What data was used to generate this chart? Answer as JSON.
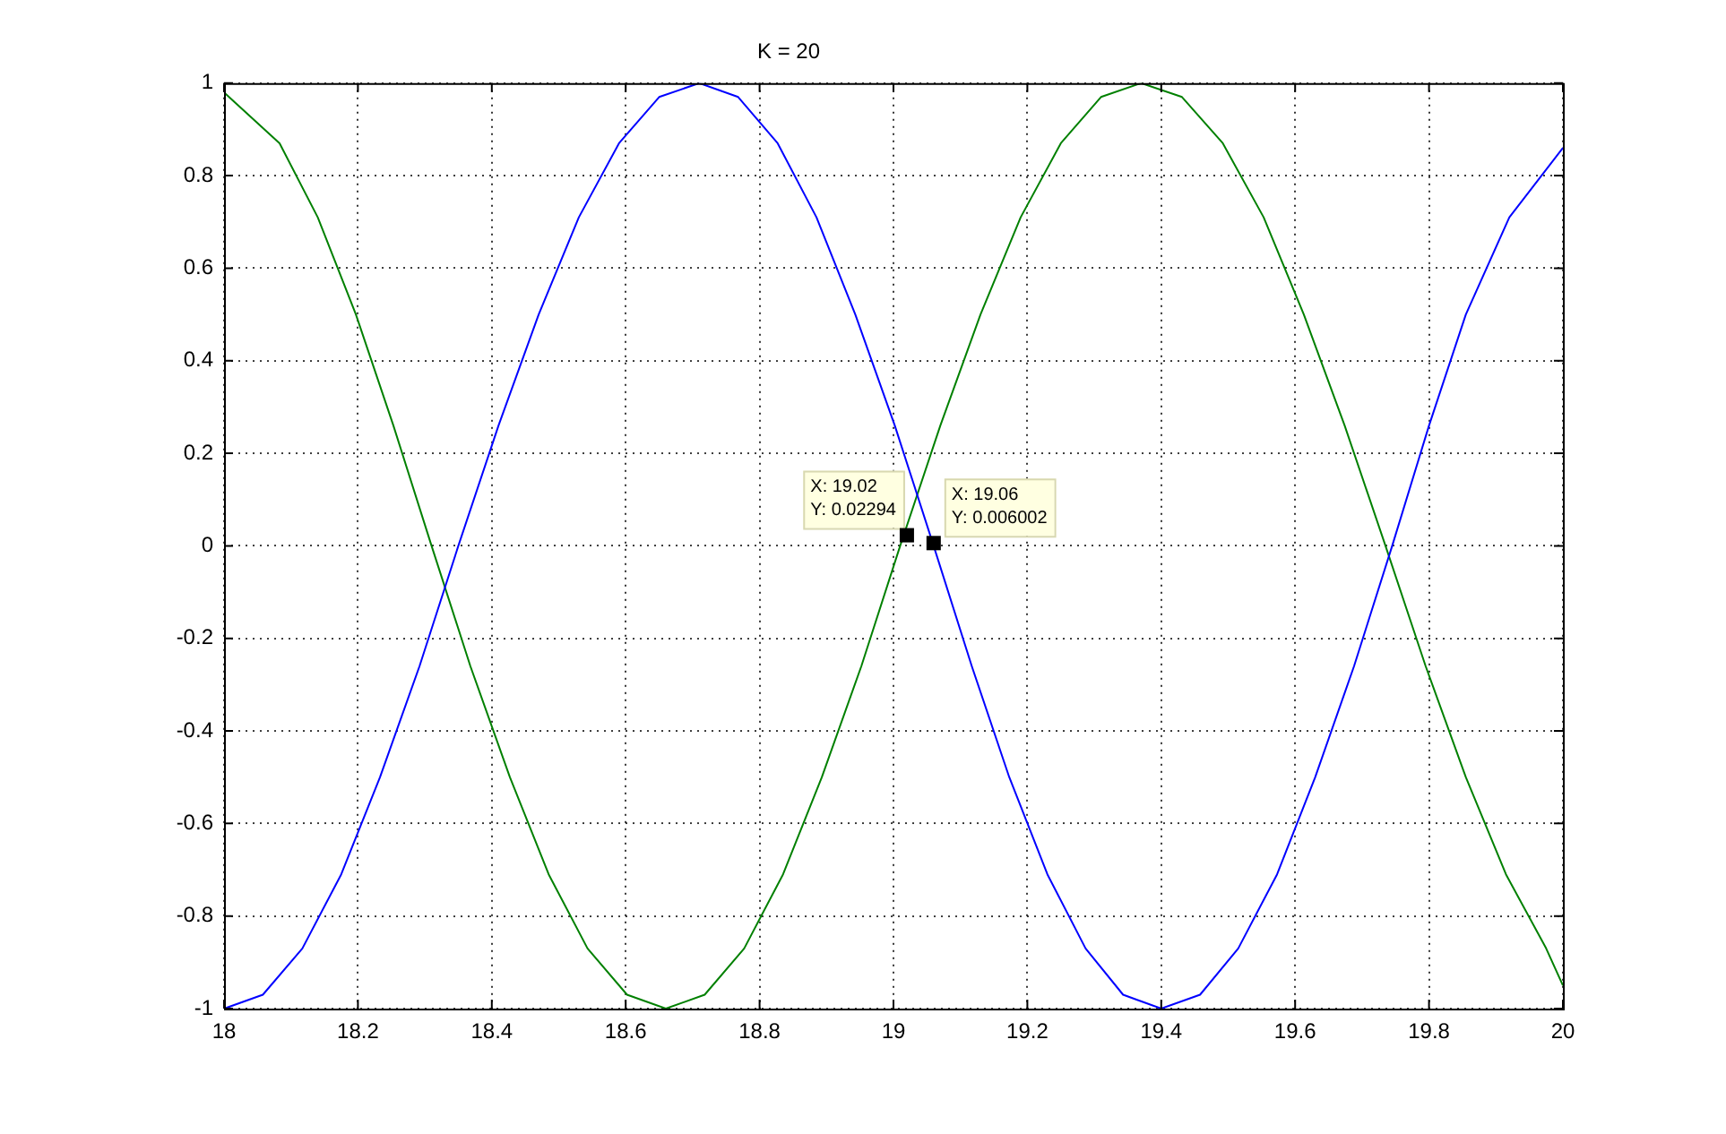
{
  "chart_data": {
    "type": "line",
    "title": "K = 20",
    "series": [
      {
        "color": "#0000ff",
        "x": [
          18,
          18.058,
          18.117,
          18.175,
          18.233,
          18.292,
          18.35,
          18.41,
          18.47,
          18.53,
          18.59,
          18.65,
          18.71,
          18.768,
          18.827,
          18.885,
          18.943,
          19.002,
          19.06,
          19.117,
          19.173,
          19.23,
          19.287,
          19.343,
          19.4,
          19.458,
          19.515,
          19.573,
          19.63,
          19.688,
          19.745,
          19.8,
          19.855,
          19.92,
          20
        ],
        "values": [
          -1,
          -0.97,
          -0.87,
          -0.71,
          -0.5,
          -0.26,
          0,
          0.26,
          0.5,
          0.71,
          0.87,
          0.97,
          1,
          0.97,
          0.87,
          0.71,
          0.5,
          0.26,
          0,
          -0.26,
          -0.5,
          -0.71,
          -0.87,
          -0.97,
          -1,
          -0.97,
          -0.87,
          -0.71,
          -0.5,
          -0.26,
          0,
          0.26,
          0.5,
          0.71,
          0.86
        ]
      },
      {
        "color": "#008000",
        "x": [
          18,
          18.083,
          18.14,
          18.197,
          18.253,
          18.31,
          18.368,
          18.427,
          18.485,
          18.543,
          18.602,
          18.66,
          18.718,
          18.777,
          18.835,
          18.893,
          18.952,
          19.01,
          19.07,
          19.13,
          19.19,
          19.25,
          19.31,
          19.37,
          19.431,
          19.492,
          19.553,
          19.613,
          19.674,
          19.735,
          19.795,
          19.855,
          19.915,
          19.975,
          20
        ],
        "values": [
          0.98,
          0.87,
          0.71,
          0.5,
          0.26,
          0,
          -0.26,
          -0.5,
          -0.71,
          -0.87,
          -0.97,
          -1,
          -0.97,
          -0.87,
          -0.71,
          -0.5,
          -0.26,
          0,
          0.26,
          0.5,
          0.71,
          0.87,
          0.97,
          1,
          0.97,
          0.87,
          0.71,
          0.5,
          0.26,
          0,
          -0.26,
          -0.5,
          -0.71,
          -0.87,
          -0.95
        ]
      }
    ],
    "annotations": [
      {
        "text": "X: 19.02\nY: 0.02294",
        "x": 19.02,
        "y": 0.02294
      },
      {
        "text": "X: 19.06\nY: 0.006002",
        "x": 19.06,
        "y": 0.006002
      }
    ],
    "xlim": [
      18,
      20
    ],
    "xticks": [
      18,
      18.2,
      18.4,
      18.6,
      18.8,
      19,
      19.2,
      19.4,
      19.6,
      19.8,
      20
    ],
    "ylim": [
      -1,
      1
    ],
    "yticks": [
      -1,
      -0.8,
      -0.6,
      -0.4,
      -0.2,
      0,
      0.2,
      0.4,
      0.6,
      0.8,
      1
    ],
    "grid": true,
    "legend": false,
    "marker": "none",
    "line_style": "solid"
  }
}
